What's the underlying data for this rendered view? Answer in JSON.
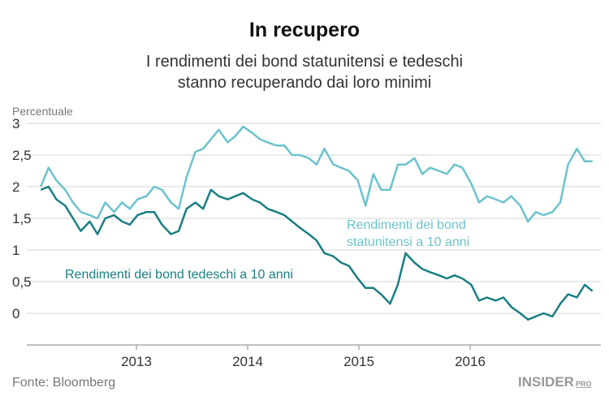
{
  "chart_data": {
    "type": "line",
    "title": "In recupero",
    "subtitle": [
      "I rendimenti dei bond statunitensi e tedeschi",
      "stanno recuperando dai loro minimi"
    ],
    "ylabel": "Percentuale",
    "xlabel": "",
    "ylim": [
      -0.5,
      3
    ],
    "yticks": [
      0,
      0.5,
      1,
      1.5,
      2,
      2.5,
      3
    ],
    "ytick_labels": [
      "0",
      "0,5",
      "1",
      "1,5",
      "2",
      "2,5",
      "3"
    ],
    "xlim": [
      2012.1,
      2017.15
    ],
    "xticks": [
      2013,
      2014,
      2015,
      2016
    ],
    "xtick_labels": [
      "2013",
      "2014",
      "2015",
      "2016"
    ],
    "grid": true,
    "x": [
      2012.14,
      2012.21,
      2012.28,
      2012.36,
      2012.43,
      2012.5,
      2012.58,
      2012.65,
      2012.72,
      2012.8,
      2012.87,
      2012.94,
      2013.01,
      2013.09,
      2013.16,
      2013.23,
      2013.31,
      2013.38,
      2013.45,
      2013.53,
      2013.6,
      2013.67,
      2013.74,
      2013.82,
      2013.89,
      2013.96,
      2014.04,
      2014.11,
      2014.18,
      2014.26,
      2014.33,
      2014.4,
      2014.47,
      2014.55,
      2014.62,
      2014.69,
      2014.77,
      2014.84,
      2014.91,
      2014.99,
      2015.06,
      2015.13,
      2015.2,
      2015.28,
      2015.35,
      2015.42,
      2015.5,
      2015.57,
      2015.64,
      2015.72,
      2015.79,
      2015.86,
      2015.93,
      2016.01,
      2016.08,
      2016.15,
      2016.23,
      2016.3,
      2016.37,
      2016.45,
      2016.52,
      2016.59,
      2016.66,
      2016.74,
      2016.81,
      2016.88,
      2016.96,
      2017.03,
      2017.1
    ],
    "series": [
      {
        "name": "Rendimenti dei bond statunitensi a 10 anni",
        "label_lines": [
          "Rendimenti dei bond",
          "statunitensi a 10 anni"
        ],
        "color": "#6cc3cc",
        "values": [
          2.0,
          2.3,
          2.1,
          1.95,
          1.75,
          1.6,
          1.55,
          1.5,
          1.75,
          1.6,
          1.75,
          1.65,
          1.8,
          1.85,
          2.0,
          1.95,
          1.75,
          1.65,
          2.15,
          2.55,
          2.6,
          2.75,
          2.9,
          2.7,
          2.8,
          2.95,
          2.85,
          2.75,
          2.7,
          2.65,
          2.65,
          2.5,
          2.5,
          2.45,
          2.35,
          2.6,
          2.35,
          2.3,
          2.25,
          2.1,
          1.7,
          2.2,
          1.95,
          1.95,
          2.35,
          2.35,
          2.45,
          2.2,
          2.3,
          2.25,
          2.2,
          2.35,
          2.3,
          2.05,
          1.75,
          1.85,
          1.8,
          1.75,
          1.85,
          1.7,
          1.45,
          1.6,
          1.55,
          1.6,
          1.75,
          2.35,
          2.6,
          2.4,
          2.4
        ]
      },
      {
        "name": "Rendimenti dei bond tedeschi a 10 anni",
        "label_lines": [
          "Rendimenti dei bond tedeschi a 10 anni"
        ],
        "color": "#1a7f83",
        "values": [
          1.95,
          2.0,
          1.8,
          1.7,
          1.5,
          1.3,
          1.45,
          1.25,
          1.5,
          1.55,
          1.45,
          1.4,
          1.55,
          1.6,
          1.6,
          1.4,
          1.25,
          1.3,
          1.65,
          1.75,
          1.65,
          1.95,
          1.85,
          1.8,
          1.85,
          1.9,
          1.8,
          1.75,
          1.65,
          1.6,
          1.55,
          1.45,
          1.35,
          1.25,
          1.15,
          0.95,
          0.9,
          0.8,
          0.75,
          0.55,
          0.4,
          0.4,
          0.3,
          0.15,
          0.45,
          0.95,
          0.8,
          0.7,
          0.65,
          0.6,
          0.55,
          0.6,
          0.55,
          0.45,
          0.2,
          0.25,
          0.2,
          0.25,
          0.1,
          0.0,
          -0.1,
          -0.05,
          0.0,
          -0.05,
          0.15,
          0.3,
          0.25,
          0.45,
          0.35
        ]
      }
    ],
    "source": "Fonte: Bloomberg",
    "logo": "INSIDER PRO"
  }
}
